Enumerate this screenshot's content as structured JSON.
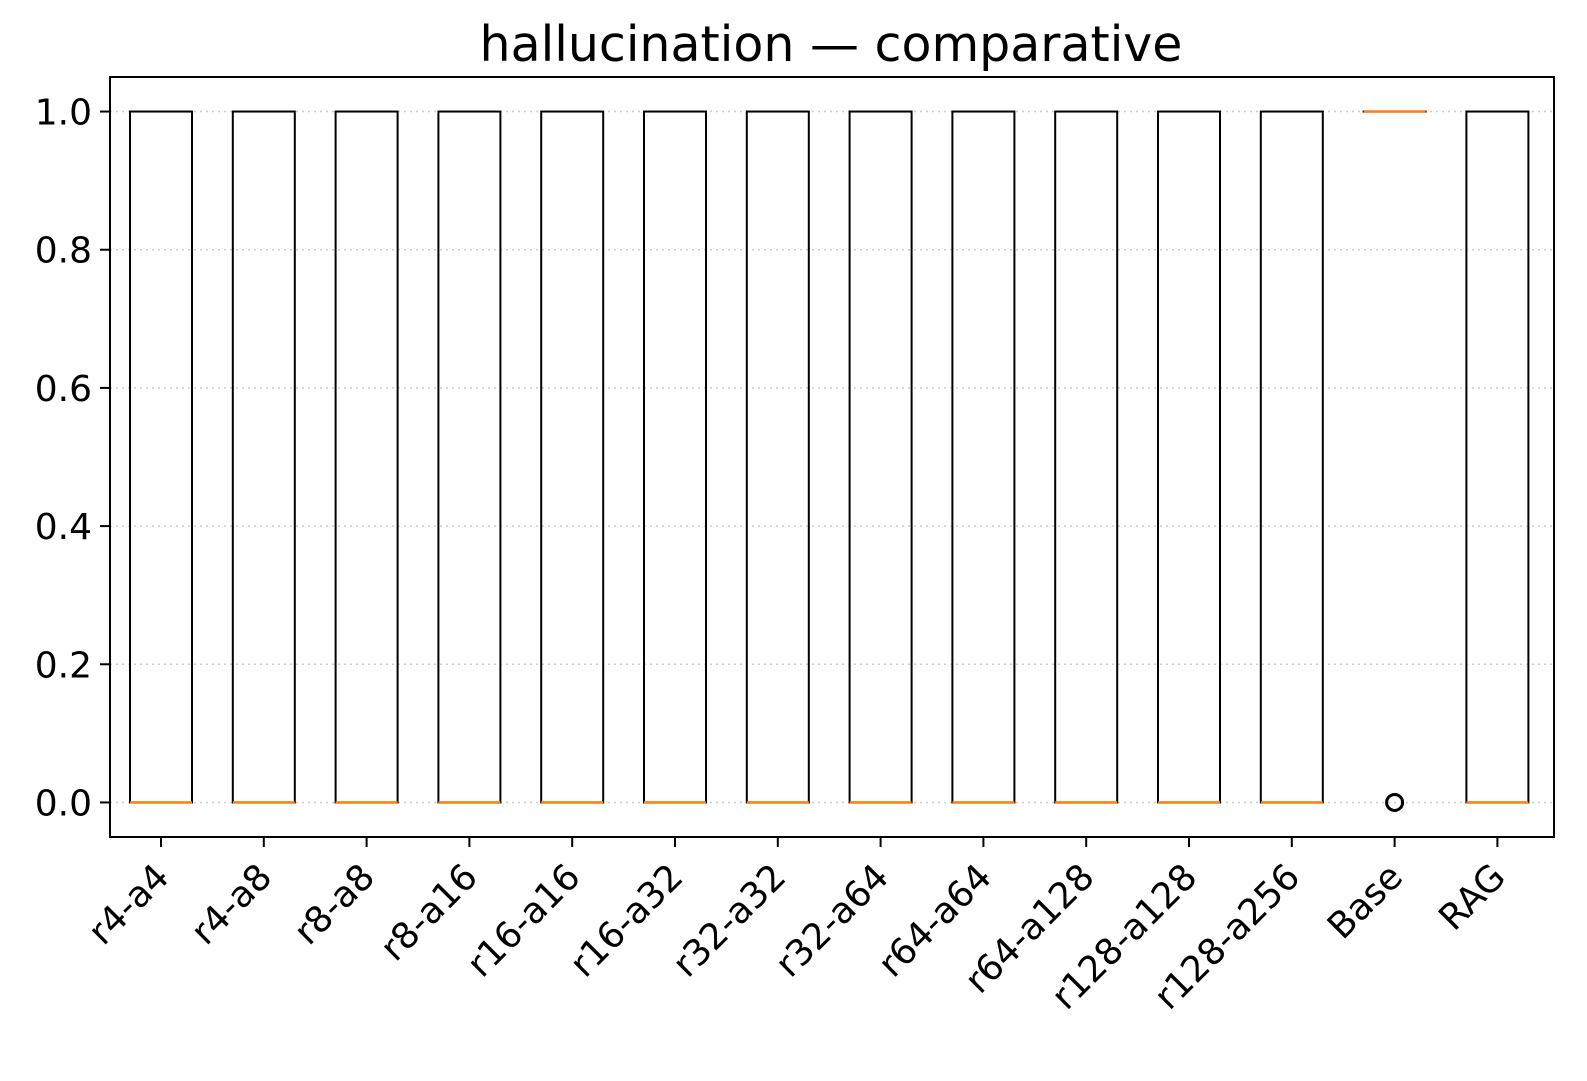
{
  "chart_data": {
    "type": "boxplot",
    "title": "hallucination — comparative",
    "xlabel": "",
    "ylabel": "",
    "ylim": [
      -0.05,
      1.05
    ],
    "yticks": [
      "0.0",
      "0.2",
      "0.4",
      "0.6",
      "0.8",
      "1.0"
    ],
    "ytick_values": [
      0.0,
      0.2,
      0.4,
      0.6,
      0.8,
      1.0
    ],
    "grid": "horizontal-dotted",
    "colors": {
      "box": "#000000",
      "median": "#ff7f0e",
      "grid": "#cccccc"
    },
    "categories": [
      "r4-a4",
      "r4-a8",
      "r8-a8",
      "r8-a16",
      "r16-a16",
      "r16-a32",
      "r32-a32",
      "r32-a64",
      "r64-a64",
      "r64-a128",
      "r128-a128",
      "r128-a256",
      "Base",
      "RAG"
    ],
    "boxes": [
      {
        "q1": 0,
        "median": 0,
        "q3": 1,
        "whisker_low": 0,
        "whisker_high": 1,
        "outliers": []
      },
      {
        "q1": 0,
        "median": 0,
        "q3": 1,
        "whisker_low": 0,
        "whisker_high": 1,
        "outliers": []
      },
      {
        "q1": 0,
        "median": 0,
        "q3": 1,
        "whisker_low": 0,
        "whisker_high": 1,
        "outliers": []
      },
      {
        "q1": 0,
        "median": 0,
        "q3": 1,
        "whisker_low": 0,
        "whisker_high": 1,
        "outliers": []
      },
      {
        "q1": 0,
        "median": 0,
        "q3": 1,
        "whisker_low": 0,
        "whisker_high": 1,
        "outliers": []
      },
      {
        "q1": 0,
        "median": 0,
        "q3": 1,
        "whisker_low": 0,
        "whisker_high": 1,
        "outliers": []
      },
      {
        "q1": 0,
        "median": 0,
        "q3": 1,
        "whisker_low": 0,
        "whisker_high": 1,
        "outliers": []
      },
      {
        "q1": 0,
        "median": 0,
        "q3": 1,
        "whisker_low": 0,
        "whisker_high": 1,
        "outliers": []
      },
      {
        "q1": 0,
        "median": 0,
        "q3": 1,
        "whisker_low": 0,
        "whisker_high": 1,
        "outliers": []
      },
      {
        "q1": 0,
        "median": 0,
        "q3": 1,
        "whisker_low": 0,
        "whisker_high": 1,
        "outliers": []
      },
      {
        "q1": 0,
        "median": 0,
        "q3": 1,
        "whisker_low": 0,
        "whisker_high": 1,
        "outliers": []
      },
      {
        "q1": 0,
        "median": 0,
        "q3": 1,
        "whisker_low": 0,
        "whisker_high": 1,
        "outliers": []
      },
      {
        "q1": 1,
        "median": 1,
        "q3": 1,
        "whisker_low": 1,
        "whisker_high": 1,
        "outliers": [
          0
        ]
      },
      {
        "q1": 0,
        "median": 0,
        "q3": 1,
        "whisker_low": 0,
        "whisker_high": 1,
        "outliers": []
      }
    ]
  }
}
